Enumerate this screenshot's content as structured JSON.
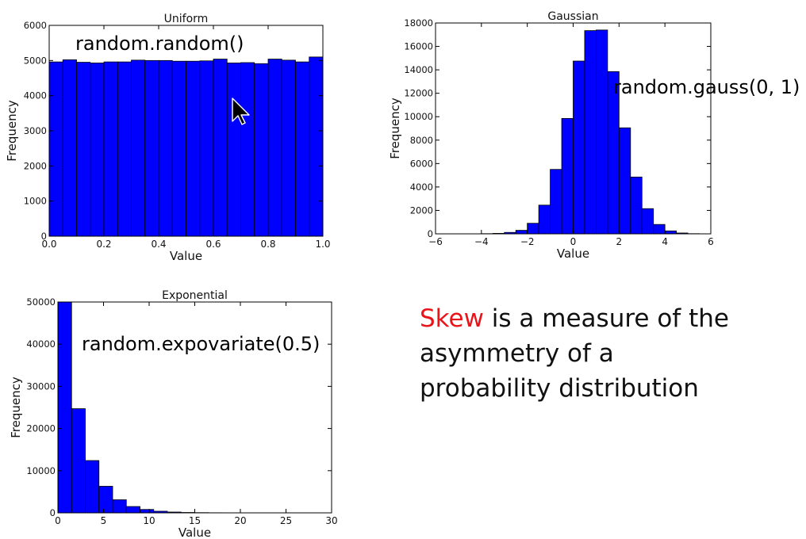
{
  "colors": {
    "bar_fill": "#0000ff",
    "bar_stroke": "#000000",
    "accent": "#e8141a",
    "text": "#111111"
  },
  "cursor": {
    "icon": "arrow-pointer-icon"
  },
  "note": {
    "highlight": "Skew",
    "line1_rest": " is a measure of the",
    "line2": "asymmetry of a",
    "line3": "probability distribution"
  },
  "chart_data": [
    {
      "id": "uniform",
      "type": "bar",
      "title": "Uniform",
      "annotation": "random.random()",
      "xlabel": "Value",
      "ylabel": "Frequency",
      "xlim": [
        0.0,
        1.0
      ],
      "ylim": [
        0,
        6000
      ],
      "xticks": [
        "0.0",
        "0.2",
        "0.4",
        "0.6",
        "0.8",
        "1.0"
      ],
      "xtick_values": [
        0.0,
        0.2,
        0.4,
        0.6,
        0.8,
        1.0
      ],
      "yticks": [
        "0",
        "1000",
        "2000",
        "3000",
        "4000",
        "5000",
        "6000"
      ],
      "ytick_values": [
        0,
        1000,
        2000,
        3000,
        4000,
        5000,
        6000
      ],
      "bin_start": 0.0,
      "bin_width": 0.05,
      "values": [
        4960,
        5020,
        4950,
        4930,
        4960,
        4960,
        5010,
        5000,
        5000,
        4980,
        4980,
        4990,
        5040,
        4930,
        4940,
        4910,
        5040,
        5010,
        4960,
        5100
      ],
      "grid": false
    },
    {
      "id": "gaussian",
      "type": "bar",
      "title": "Gaussian",
      "annotation": "random.gauss(0, 1)",
      "xlabel": "Value",
      "ylabel": "Frequency",
      "xlim": [
        -6,
        6
      ],
      "ylim": [
        0,
        18000
      ],
      "xticks": [
        "−6",
        "−4",
        "−2",
        "0",
        "2",
        "4",
        "6"
      ],
      "xtick_values": [
        -6,
        -4,
        -2,
        0,
        2,
        4,
        6
      ],
      "yticks": [
        "0",
        "2000",
        "4000",
        "6000",
        "8000",
        "10000",
        "12000",
        "14000",
        "16000",
        "18000"
      ],
      "ytick_values": [
        0,
        2000,
        4000,
        6000,
        8000,
        10000,
        12000,
        14000,
        16000,
        18000
      ],
      "bin_start": -5.0,
      "bin_width": 0.5,
      "values": [
        2,
        5,
        15,
        40,
        120,
        300,
        900,
        2450,
        5500,
        9850,
        14750,
        17350,
        17400,
        13850,
        9050,
        4850,
        2150,
        800,
        250,
        70,
        15,
        4
      ],
      "grid": false
    },
    {
      "id": "exponential",
      "type": "bar",
      "title": "Exponential",
      "annotation": "random.expovariate(0.5)",
      "xlabel": "Value",
      "ylabel": "Frequency",
      "xlim": [
        0,
        30
      ],
      "ylim": [
        0,
        50000
      ],
      "xticks": [
        "0",
        "5",
        "10",
        "15",
        "20",
        "25",
        "30"
      ],
      "xtick_values": [
        0,
        5,
        10,
        15,
        20,
        25,
        30
      ],
      "yticks": [
        "0",
        "10000",
        "20000",
        "30000",
        "40000",
        "50000"
      ],
      "ytick_values": [
        0,
        10000,
        20000,
        30000,
        40000,
        50000
      ],
      "bin_start": 0.0,
      "bin_width": 1.5,
      "values": [
        50000,
        24700,
        12400,
        6300,
        3100,
        1500,
        800,
        380,
        190,
        90,
        50,
        25,
        12,
        6,
        3,
        2,
        1,
        1
      ],
      "grid": false
    }
  ]
}
